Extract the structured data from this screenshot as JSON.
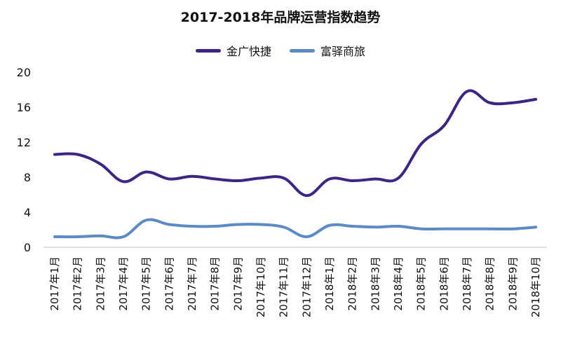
{
  "chart_data": {
    "type": "line",
    "title": "2017-2018年品牌运营指数趋势",
    "xlabel": "",
    "ylabel": "",
    "ylim": [
      0,
      20
    ],
    "yticks": [
      "0",
      "4",
      "8",
      "12",
      "16",
      "20"
    ],
    "grid": false,
    "legend_position": "top-center",
    "categories": [
      "2017年1月",
      "2017年2月",
      "2017年3月",
      "2017年4月",
      "2017年5月",
      "2017年6月",
      "2017年7月",
      "2017年8月",
      "2017年9月",
      "2017年10月",
      "2017年11月",
      "2017年12月",
      "2018年1月",
      "2018年2月",
      "2018年3月",
      "2018年4月",
      "2018年5月",
      "2018年6月",
      "2018年7月",
      "2018年8月",
      "2018年9月",
      "2018年10月"
    ],
    "series": [
      {
        "name": "金广快捷",
        "color": "#3d2585",
        "values": [
          10.6,
          10.6,
          9.5,
          7.5,
          8.6,
          7.8,
          8.1,
          7.8,
          7.6,
          7.9,
          7.9,
          5.9,
          7.8,
          7.6,
          7.8,
          7.9,
          11.8,
          13.9,
          17.8,
          16.5,
          16.5,
          16.9
        ]
      },
      {
        "name": "富驿商旅",
        "color": "#5b8ac6",
        "values": [
          1.2,
          1.2,
          1.3,
          1.2,
          3.1,
          2.6,
          2.4,
          2.4,
          2.6,
          2.6,
          2.3,
          1.2,
          2.5,
          2.4,
          2.3,
          2.4,
          2.1,
          2.1,
          2.1,
          2.1,
          2.1,
          2.3
        ]
      }
    ]
  }
}
